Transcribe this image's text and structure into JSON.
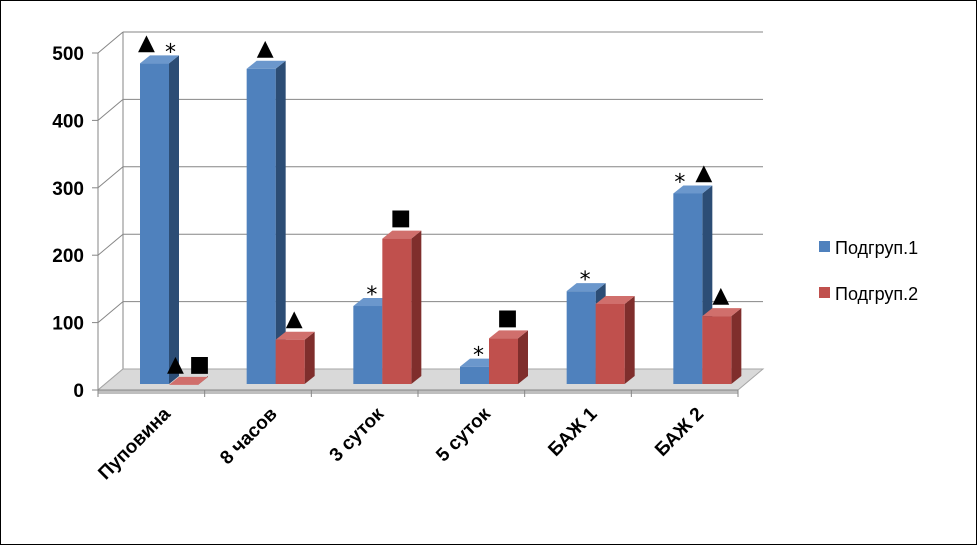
{
  "chart_data": {
    "type": "bar",
    "categories": [
      "Пуповина",
      "8 часов",
      "3 суток",
      "5 суток",
      "БАЖ 1",
      "БАЖ 2"
    ],
    "series": [
      {
        "name": "Подгруп.1",
        "values": [
          495,
          487,
          135,
          45,
          157,
          302
        ]
      },
      {
        "name": "Подгруп.2",
        "values": [
          18,
          85,
          235,
          87,
          138,
          120
        ]
      }
    ],
    "ylim": [
      0,
      500
    ],
    "yticks": [
      "0",
      "100",
      "200",
      "300",
      "400",
      "500"
    ],
    "grid": true,
    "legend": "right",
    "colors": {
      "series1_front": "#4f81bd",
      "series1_side": "#2c4d75",
      "series1_top": "#6b97cc",
      "series2_front": "#c0504d",
      "series2_side": "#7f2e2c",
      "series2_top": "#d06f6c"
    },
    "annotations": [
      {
        "category": 0,
        "series": 0,
        "symbols": [
          "▲",
          "*"
        ]
      },
      {
        "category": 0,
        "series": 1,
        "symbols": [
          "▲",
          "■"
        ]
      },
      {
        "category": 1,
        "series": 0,
        "symbols": [
          "▲"
        ]
      },
      {
        "category": 1,
        "series": 1,
        "symbols": [
          "▲"
        ]
      },
      {
        "category": 2,
        "series": 0,
        "symbols": [
          "*"
        ]
      },
      {
        "category": 2,
        "series": 1,
        "symbols": [
          "■"
        ]
      },
      {
        "category": 3,
        "series": 0,
        "symbols": [
          "*"
        ]
      },
      {
        "category": 3,
        "series": 1,
        "symbols": [
          "■"
        ]
      },
      {
        "category": 4,
        "series": 0,
        "symbols": [
          "*"
        ]
      },
      {
        "category": 5,
        "series": 0,
        "symbols": [
          "*",
          "▲"
        ]
      },
      {
        "category": 5,
        "series": 1,
        "symbols": [
          "▲"
        ]
      }
    ]
  }
}
